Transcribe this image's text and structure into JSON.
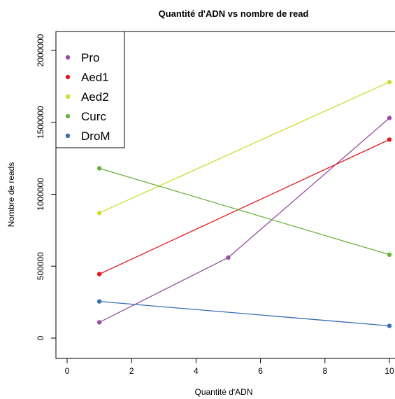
{
  "chart_data": {
    "type": "line",
    "title": "Quantité d'ADN vs nombre de read",
    "xlabel": "Quantité d'ADN",
    "ylabel": "Nombre de reads",
    "xlim": [
      0,
      10
    ],
    "ylim": [
      0,
      2000000
    ],
    "xticks": [
      0,
      2,
      4,
      6,
      8,
      10
    ],
    "yticks": [
      0,
      500000,
      1000000,
      1500000,
      2000000
    ],
    "xtick_labels": [
      "0",
      "2",
      "4",
      "6",
      "8",
      "10"
    ],
    "ytick_labels": [
      "0",
      "500000",
      "1000000",
      "1500000",
      "2000000"
    ],
    "grid": false,
    "legend_position": "top-left",
    "series": [
      {
        "name": "Pro",
        "color": "#984ea3",
        "x": [
          1,
          5,
          10
        ],
        "y": [
          110000,
          560000,
          1530000
        ]
      },
      {
        "name": "Aed1",
        "color": "#e41a1c",
        "x": [
          1,
          10
        ],
        "y": [
          445000,
          1380000
        ]
      },
      {
        "name": "Aed2",
        "color": "#cddc2e",
        "x": [
          1,
          10
        ],
        "y": [
          870000,
          1780000
        ]
      },
      {
        "name": "Curc",
        "color": "#6ab33f",
        "x": [
          1,
          10
        ],
        "y": [
          1180000,
          580000
        ]
      },
      {
        "name": "DroM",
        "color": "#3a6db5",
        "x": [
          1,
          10
        ],
        "y": [
          255000,
          85000
        ]
      }
    ]
  }
}
